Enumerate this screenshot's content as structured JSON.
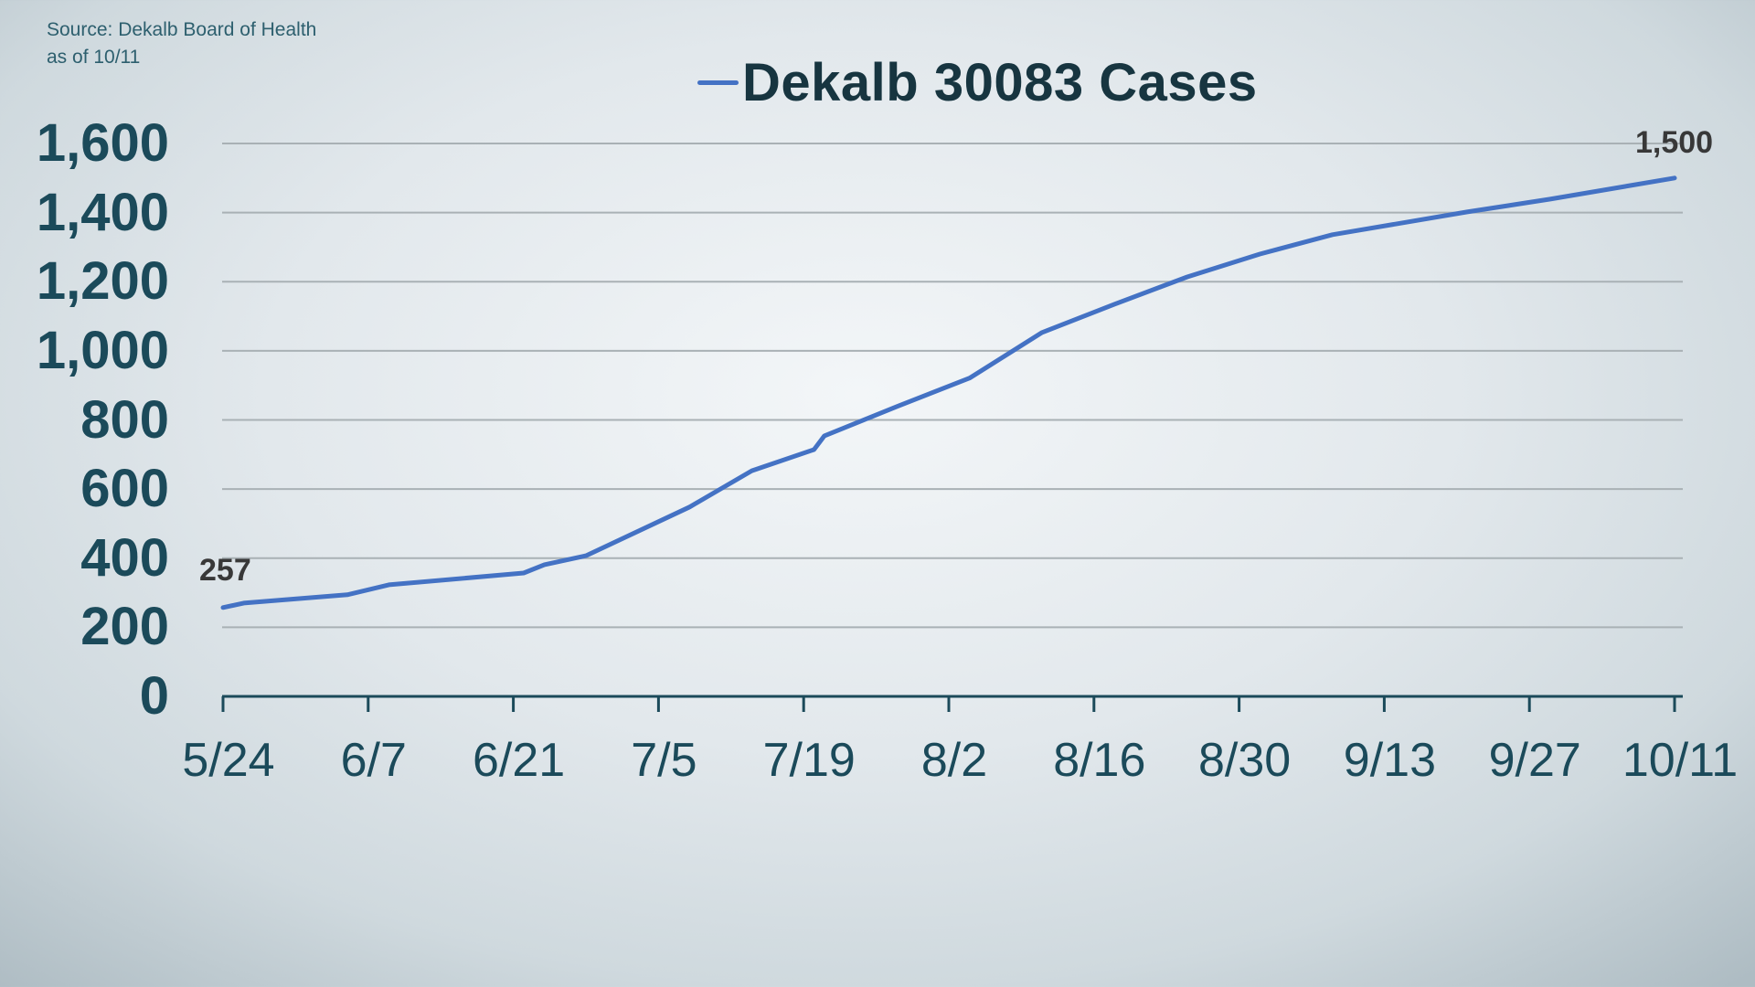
{
  "source": {
    "line1": "Source: Dekalb Board of Health",
    "line2": "as of 10/11"
  },
  "legend": {
    "label": "Dekalb 30083 Cases",
    "color": "#4472c4"
  },
  "colors": {
    "line": "#4472c4",
    "axis": "#1b4a5a",
    "grid": "#a9b1b5",
    "tick_text": "#1b4a5a",
    "data_label": "#383838"
  },
  "y_ticks": [
    "1,600",
    "1,400",
    "1,200",
    "1,000",
    "800",
    "600",
    "400",
    "200",
    "0"
  ],
  "x_ticks": [
    "5/24",
    "6/7",
    "6/21",
    "7/5",
    "7/19",
    "8/2",
    "8/16",
    "8/30",
    "9/13",
    "9/27",
    "10/11"
  ],
  "data_labels": {
    "start": "257",
    "end": "1,500"
  },
  "chart_data": {
    "type": "line",
    "title": "Dekalb 30083 Cases",
    "subtitle": "Source: Dekalb Board of Health, as of 10/11",
    "xlabel": "",
    "ylabel": "",
    "ylim": [
      0,
      1600
    ],
    "y_tick_values": [
      0,
      200,
      400,
      600,
      800,
      1000,
      1200,
      1400,
      1600
    ],
    "x_tick_labels": [
      "5/24",
      "6/7",
      "6/21",
      "7/5",
      "7/19",
      "8/2",
      "8/16",
      "8/30",
      "9/13",
      "9/27",
      "10/11"
    ],
    "grid": true,
    "legend_position": "top",
    "series": [
      {
        "name": "Dekalb 30083 Cases",
        "points": [
          {
            "day": 0,
            "value": 257
          },
          {
            "day": 2,
            "value": 270
          },
          {
            "day": 12,
            "value": 294
          },
          {
            "day": 16,
            "value": 323
          },
          {
            "day": 29,
            "value": 357
          },
          {
            "day": 31,
            "value": 381
          },
          {
            "day": 35,
            "value": 407
          },
          {
            "day": 45,
            "value": 548
          },
          {
            "day": 51,
            "value": 653
          },
          {
            "day": 57,
            "value": 714
          },
          {
            "day": 58,
            "value": 754
          },
          {
            "day": 65,
            "value": 839
          },
          {
            "day": 72,
            "value": 921
          },
          {
            "day": 79,
            "value": 1053
          },
          {
            "day": 86,
            "value": 1135
          },
          {
            "day": 93,
            "value": 1214
          },
          {
            "day": 100,
            "value": 1280
          },
          {
            "day": 107,
            "value": 1336
          },
          {
            "day": 120,
            "value": 1402
          },
          {
            "day": 128,
            "value": 1439
          },
          {
            "day": 140,
            "value": 1500
          }
        ]
      }
    ],
    "annotations": [
      {
        "text": "257",
        "at": "5/24"
      },
      {
        "text": "1,500",
        "at": "10/11"
      }
    ]
  }
}
